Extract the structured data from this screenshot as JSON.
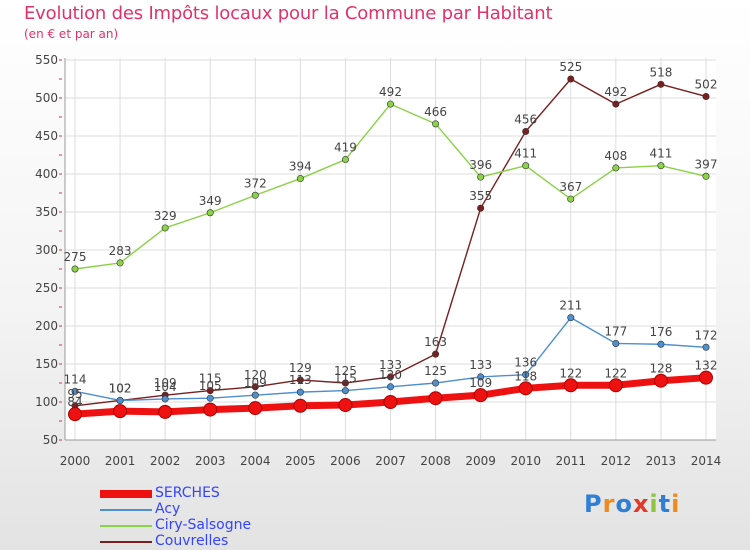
{
  "title": "Evolution des Impôts locaux pour la Commune par Habitant",
  "subtitle": "(en € et par an)",
  "logo": {
    "text": "Proxiti",
    "letters": [
      {
        "char": "P",
        "color": "#2f7fd6"
      },
      {
        "char": "r",
        "color": "#f08a1c"
      },
      {
        "char": "o",
        "color": "#2f7fd6"
      },
      {
        "char": "x",
        "color": "#e23a2a"
      },
      {
        "char": "i",
        "color": "#8cc63f"
      },
      {
        "char": "t",
        "color": "#2f7fd6"
      },
      {
        "char": "i",
        "color": "#f08a1c"
      }
    ]
  },
  "chart_data": {
    "type": "line",
    "title": "Evolution des Impôts locaux pour la Commune par Habitant",
    "subtitle": "(en € et par an)",
    "xlabel": "",
    "ylabel": "",
    "x": [
      "2000",
      "2001",
      "2002",
      "2003",
      "2004",
      "2005",
      "2006",
      "2007",
      "2008",
      "2009",
      "2010",
      "2011",
      "2012",
      "2013",
      "2014"
    ],
    "ylim": [
      50,
      550
    ],
    "yticks": [
      50,
      100,
      150,
      200,
      250,
      300,
      350,
      400,
      450,
      500,
      550
    ],
    "grid": true,
    "legend": "bottom-left",
    "series": [
      {
        "name": "SERCHES",
        "color": "#ee1111",
        "values": [
          84,
          88,
          87,
          90,
          92,
          95,
          96,
          100,
          105,
          109,
          118,
          122,
          122,
          128,
          132
        ],
        "labels": [
          true,
          false,
          false,
          false,
          false,
          false,
          false,
          false,
          false,
          true,
          true,
          true,
          true,
          true,
          true
        ]
      },
      {
        "name": "Acy",
        "color": "#4d8fcf",
        "values": [
          114,
          102,
          104,
          105,
          109,
          113,
          115,
          120,
          125,
          133,
          136,
          211,
          177,
          176,
          172
        ],
        "labels": [
          true,
          true,
          true,
          true,
          true,
          true,
          true,
          true,
          true,
          true,
          true,
          true,
          true,
          true,
          true
        ]
      },
      {
        "name": "Ciry-Salsogne",
        "color": "#8ad246",
        "values": [
          275,
          283,
          329,
          349,
          372,
          394,
          419,
          492,
          466,
          396,
          411,
          367,
          408,
          411,
          397
        ],
        "labels": [
          true,
          true,
          true,
          true,
          true,
          true,
          true,
          true,
          true,
          true,
          true,
          true,
          true,
          true,
          true
        ]
      },
      {
        "name": "Couvrelles",
        "color": "#7a1f1f",
        "values": [
          95,
          102,
          109,
          115,
          120,
          129,
          125,
          133,
          163,
          355,
          456,
          525,
          492,
          518,
          502
        ],
        "labels": [
          true,
          true,
          true,
          true,
          true,
          true,
          true,
          true,
          true,
          true,
          true,
          true,
          true,
          true,
          true
        ]
      }
    ]
  }
}
